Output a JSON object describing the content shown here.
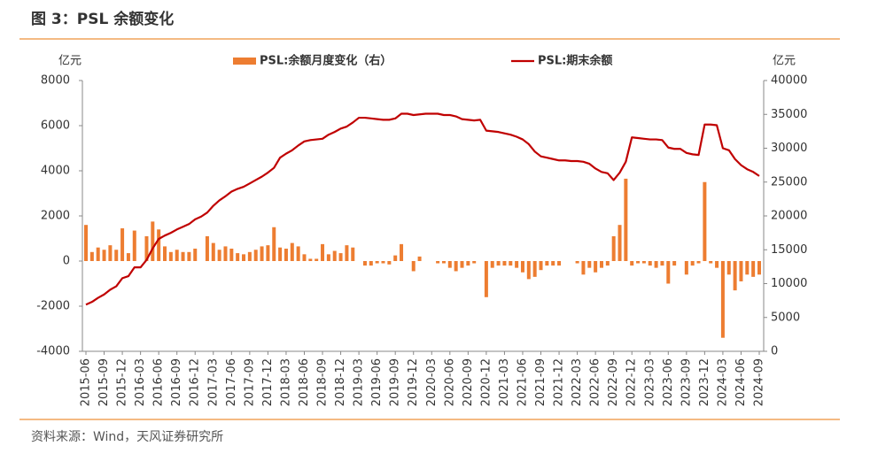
{
  "chart_data": {
    "type": "combo",
    "title": "图 3：PSL 余额变化",
    "source": "资料来源：Wind，天风证券研究所",
    "y_unit": "亿元",
    "y2_unit": "亿元",
    "categories": [
      "2015-06",
      null,
      null,
      "2015-09",
      null,
      null,
      "2015-12",
      null,
      null,
      "2016-03",
      null,
      null,
      "2016-06",
      null,
      null,
      "2016-09",
      null,
      null,
      "2016-12",
      null,
      null,
      "2017-03",
      null,
      null,
      "2017-06",
      null,
      null,
      "2017-09",
      null,
      null,
      "2017-12",
      null,
      null,
      "2018-03",
      null,
      null,
      "2018-06",
      null,
      null,
      "2018-09",
      null,
      null,
      "2018-12",
      null,
      null,
      "2019-03",
      null,
      null,
      "2019-06",
      null,
      null,
      "2019-09",
      null,
      null,
      "2019-12",
      null,
      null,
      "2020-03",
      null,
      null,
      "2020-06",
      null,
      null,
      "2020-09",
      null,
      null,
      "2020-12",
      null,
      null,
      "2021-03",
      null,
      null,
      "2021-06",
      null,
      null,
      "2021-09",
      null,
      null,
      "2021-12",
      null,
      null,
      "2022-03",
      null,
      null,
      "2022-06",
      null,
      null,
      "2022-09",
      null,
      null,
      "2022-12",
      null,
      null,
      "2023-03",
      null,
      null,
      "2023-06",
      null,
      null,
      "2023-09",
      null,
      null,
      "2023-12",
      null,
      null,
      "2024-03",
      null,
      null,
      "2024-06",
      null,
      null,
      "2024-09"
    ],
    "series": [
      {
        "name": "PSL:余额月度变化（右）",
        "type": "bar",
        "color": "#ED7D31",
        "values": [
          1600,
          400,
          600,
          500,
          700,
          500,
          1450,
          350,
          1350,
          0,
          1100,
          1750,
          1400,
          650,
          400,
          500,
          400,
          400,
          550,
          0,
          1100,
          800,
          500,
          650,
          550,
          350,
          300,
          400,
          500,
          650,
          700,
          1500,
          600,
          550,
          800,
          650,
          300,
          100,
          100,
          750,
          300,
          450,
          350,
          700,
          600,
          0,
          -200,
          -200,
          -100,
          -100,
          -150,
          250,
          750,
          0,
          -450,
          200,
          0,
          0,
          -100,
          -100,
          -300,
          -450,
          -300,
          -200,
          -100,
          0,
          -1600,
          -300,
          -200,
          -200,
          -200,
          -300,
          -500,
          -800,
          -700,
          -400,
          -200,
          -200,
          -200,
          0,
          0,
          -100,
          -600,
          -300,
          -500,
          -300,
          -200,
          1100,
          1600,
          3650,
          -200,
          -100,
          -100,
          -200,
          -300,
          -200,
          -1000,
          -200,
          0,
          -600,
          -200,
          -100,
          3500,
          -100,
          -300,
          -3400,
          -600,
          -1300,
          -900,
          -600,
          -700,
          -600
        ]
      },
      {
        "name": "PSL:期末余额",
        "type": "line",
        "axis": "y2",
        "color": "#C00000",
        "values": [
          6900,
          7300,
          7900,
          8400,
          9100,
          9600,
          10800,
          11100,
          12400,
          12400,
          13500,
          15200,
          16600,
          17100,
          17500,
          18000,
          18400,
          18800,
          19500,
          19900,
          20500,
          21500,
          22300,
          22900,
          23600,
          24000,
          24300,
          24800,
          25300,
          25800,
          26400,
          27100,
          28600,
          29200,
          29700,
          30400,
          31000,
          31200,
          31300,
          31400,
          32000,
          32400,
          32900,
          33200,
          33800,
          34500,
          34500,
          34400,
          34300,
          34200,
          34200,
          34400,
          35100,
          35100,
          34900,
          35000,
          35100,
          35100,
          35100,
          34900,
          34900,
          34700,
          34300,
          34200,
          34100,
          34200,
          32600,
          32500,
          32400,
          32200,
          32000,
          31700,
          31300,
          30600,
          29500,
          28800,
          28600,
          28400,
          28200,
          28200,
          28100,
          28100,
          28000,
          27700,
          27000,
          26500,
          26300,
          25300,
          26400,
          28000,
          31600,
          31500,
          31400,
          31300,
          31300,
          31200,
          30100,
          29900,
          29900,
          29300,
          29100,
          29000,
          33500,
          33500,
          33400,
          30000,
          29700,
          28400,
          27500,
          26900,
          26500,
          25900
        ]
      }
    ],
    "ylim": [
      -4000,
      8000
    ],
    "yticks": [
      -4000,
      -2000,
      0,
      2000,
      4000,
      6000,
      8000
    ],
    "y2lim": [
      0,
      40000
    ],
    "y2ticks": [
      0,
      5000,
      10000,
      15000,
      20000,
      25000,
      30000,
      35000,
      40000
    ],
    "grid": false
  }
}
